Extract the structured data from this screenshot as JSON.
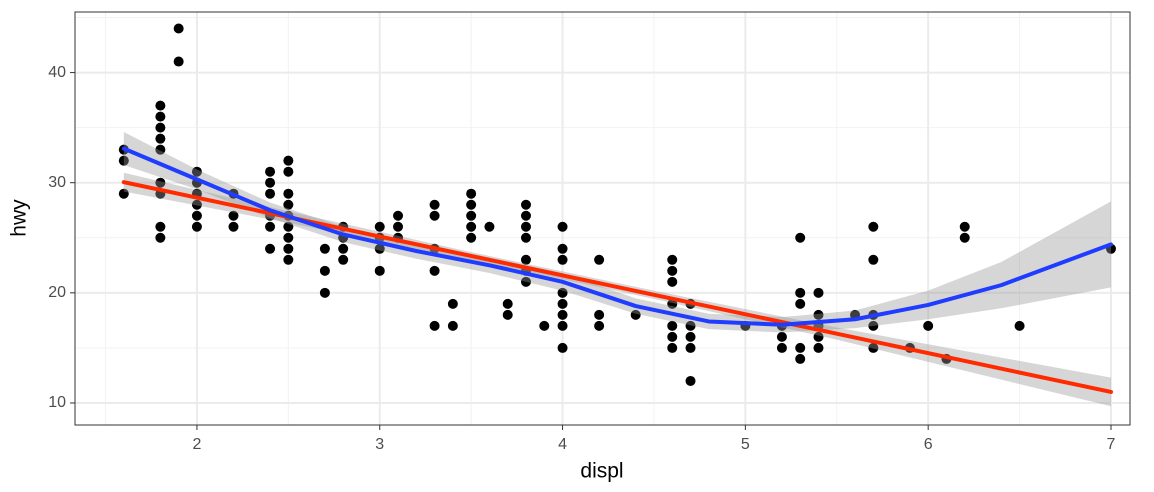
{
  "chart_data": {
    "type": "scatter",
    "x_label": "displ",
    "y_label": "hwy",
    "xlim": [
      1.333,
      7.104
    ],
    "ylim": [
      8.0,
      45.5
    ],
    "xticks": [
      2,
      3,
      4,
      5,
      6,
      7
    ],
    "yticks": [
      10,
      20,
      30,
      40
    ],
    "xminor": [
      1.5,
      2.5,
      3.5,
      4.5,
      5.5,
      6.5
    ],
    "yminor": [
      15,
      25,
      35,
      45
    ],
    "grid": true,
    "series": [
      {
        "type": "scatter",
        "color": "#000000",
        "x": [
          1.6,
          1.6,
          1.6,
          1.8,
          1.8,
          1.8,
          1.8,
          1.8,
          1.8,
          1.8,
          1.8,
          1.8,
          1.9,
          1.9,
          2.0,
          2.0,
          2.0,
          2.0,
          2.0,
          2.0,
          2.2,
          2.2,
          2.2,
          2.4,
          2.4,
          2.4,
          2.4,
          2.4,
          2.4,
          2.5,
          2.5,
          2.5,
          2.5,
          2.5,
          2.5,
          2.5,
          2.5,
          2.5,
          2.7,
          2.7,
          2.7,
          2.8,
          2.8,
          2.8,
          2.8,
          3.0,
          3.0,
          3.0,
          3.0,
          3.1,
          3.1,
          3.1,
          3.3,
          3.3,
          3.3,
          3.3,
          3.3,
          3.4,
          3.4,
          3.5,
          3.5,
          3.5,
          3.5,
          3.5,
          3.6,
          3.7,
          3.7,
          3.8,
          3.8,
          3.8,
          3.8,
          3.8,
          3.8,
          3.8,
          3.9,
          4.0,
          4.0,
          4.0,
          4.0,
          4.0,
          4.0,
          4.0,
          4.0,
          4.2,
          4.2,
          4.2,
          4.4,
          4.6,
          4.6,
          4.6,
          4.6,
          4.6,
          4.6,
          4.6,
          4.7,
          4.7,
          4.7,
          4.7,
          4.7,
          5.0,
          5.2,
          5.2,
          5.2,
          5.3,
          5.3,
          5.3,
          5.3,
          5.3,
          5.4,
          5.4,
          5.4,
          5.4,
          5.4,
          5.6,
          5.7,
          5.7,
          5.7,
          5.7,
          5.7,
          5.9,
          6.0,
          6.1,
          6.2,
          6.2,
          6.5,
          7.0
        ],
        "values": [
          33,
          32,
          29,
          37,
          36,
          35,
          34,
          33,
          30,
          29,
          26,
          25,
          44,
          41,
          31,
          30,
          29,
          28,
          27,
          26,
          29,
          27,
          26,
          31,
          30,
          29,
          27,
          26,
          24,
          32,
          31,
          29,
          28,
          27,
          26,
          25,
          24,
          23,
          24,
          22,
          20,
          26,
          25,
          24,
          23,
          26,
          25,
          24,
          22,
          27,
          26,
          25,
          28,
          27,
          24,
          22,
          17,
          19,
          17,
          29,
          28,
          27,
          26,
          25,
          26,
          19,
          18,
          28,
          27,
          26,
          25,
          23,
          22,
          21,
          17,
          26,
          24,
          23,
          20,
          19,
          18,
          17,
          15,
          23,
          18,
          17,
          18,
          23,
          22,
          21,
          19,
          17,
          16,
          15,
          19,
          17,
          16,
          15,
          12,
          17,
          17,
          16,
          15,
          25,
          20,
          19,
          15,
          14,
          20,
          18,
          17,
          16,
          15,
          18,
          26,
          23,
          18,
          17,
          15,
          15,
          17,
          14,
          26,
          25,
          17,
          24
        ]
      },
      {
        "type": "smooth",
        "color": "#ff2a00",
        "x": [
          1.6,
          2.5,
          3.5,
          4.5,
          5.5,
          7.0
        ],
        "values": [
          30.05,
          26.88,
          23.35,
          19.82,
          16.29,
          11.0
        ],
        "lower": [
          29.2,
          26.35,
          23.0,
          19.45,
          15.75,
          9.7
        ],
        "upper": [
          30.9,
          27.4,
          23.7,
          20.2,
          16.85,
          12.3
        ]
      },
      {
        "type": "smooth",
        "color": "#1f3cff",
        "x": [
          1.6,
          2.0,
          2.4,
          2.8,
          3.2,
          3.6,
          4.0,
          4.4,
          4.8,
          5.2,
          5.6,
          6.0,
          6.4,
          7.0
        ],
        "values": [
          33.1,
          30.3,
          27.5,
          25.3,
          23.8,
          22.5,
          21.0,
          18.8,
          17.4,
          17.1,
          17.6,
          18.9,
          20.7,
          24.4
        ],
        "lower": [
          31.6,
          29.4,
          26.8,
          24.6,
          23.1,
          21.8,
          20.2,
          18.1,
          16.7,
          16.4,
          16.8,
          17.6,
          18.6,
          20.5
        ],
        "upper": [
          34.6,
          31.2,
          28.2,
          26.0,
          24.5,
          23.2,
          21.8,
          19.5,
          18.1,
          17.8,
          18.4,
          20.2,
          22.8,
          28.3
        ]
      }
    ]
  }
}
